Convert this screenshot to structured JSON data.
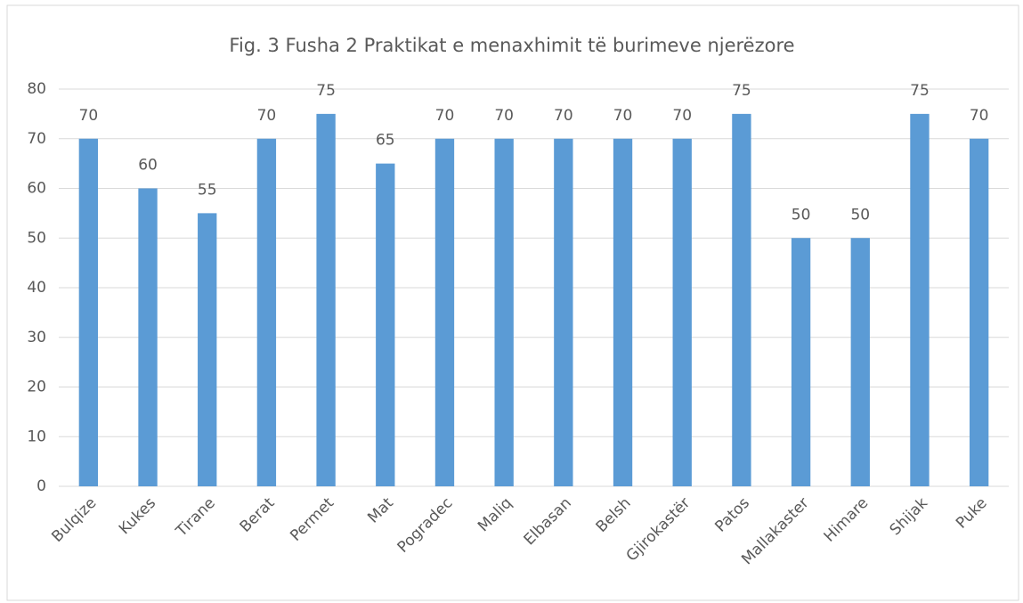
{
  "chart_data": {
    "type": "bar",
    "title": "Fig. 3 Fusha 2 Praktikat e menaxhimit të burimeve njerëzore",
    "categories": [
      "Bulqize",
      "Kukes",
      "Tirane",
      "Berat",
      "Permet",
      "Mat",
      "Pogradec",
      "Maliq",
      "Elbasan",
      "Belsh",
      "Gjirokastër",
      "Patos",
      "Mallakaster",
      "Himare",
      "Shijak",
      "Puke"
    ],
    "values": [
      70,
      60,
      55,
      70,
      75,
      65,
      70,
      70,
      70,
      70,
      70,
      75,
      50,
      50,
      75,
      70
    ],
    "color": "#5b9bd5",
    "ylim": [
      0,
      80
    ],
    "yticks": [
      0,
      10,
      20,
      30,
      40,
      50,
      60,
      70,
      80
    ],
    "grid": true
  }
}
